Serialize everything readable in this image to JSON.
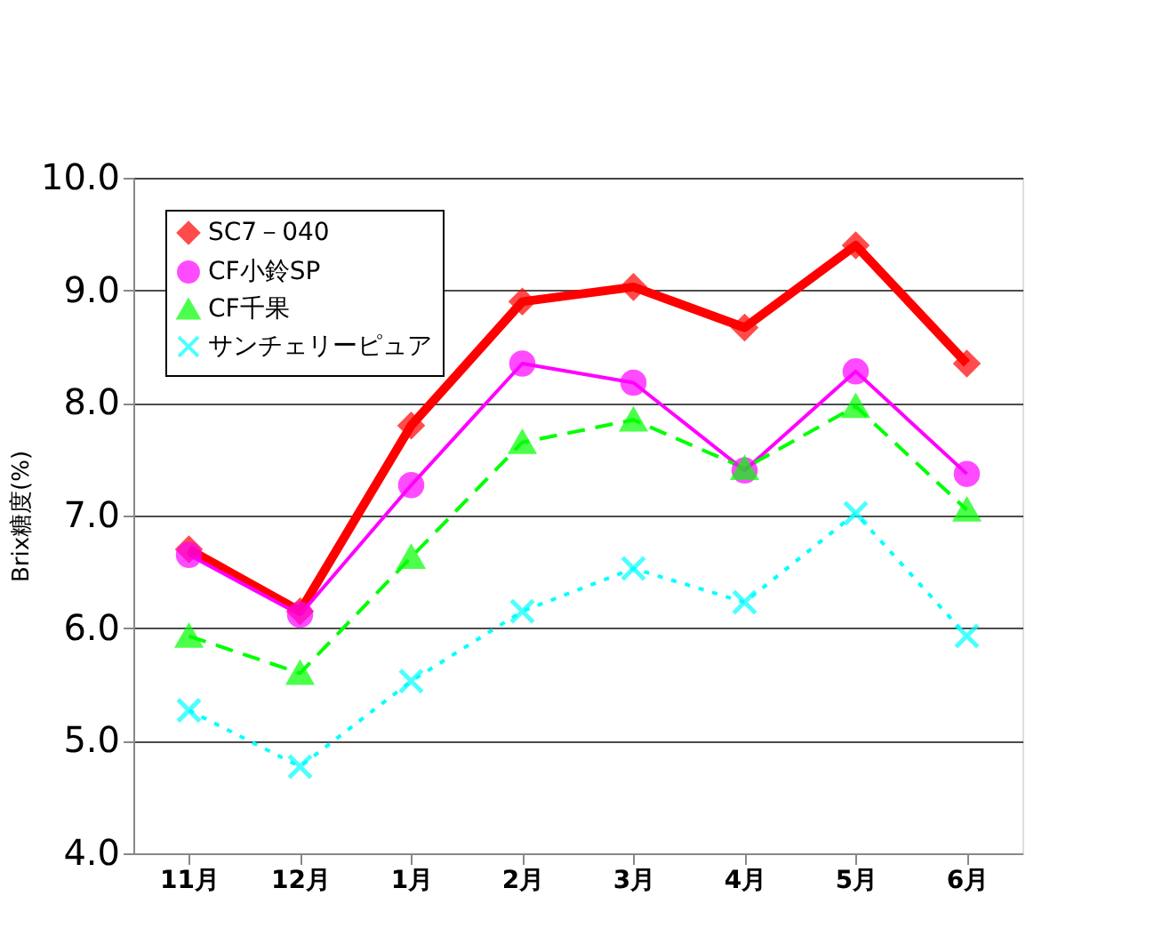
{
  "chart_data": {
    "type": "line",
    "ylabel": "Brix糖度(%)",
    "categories": [
      "11月",
      "12月",
      "1月",
      "2月",
      "3月",
      "4月",
      "5月",
      "6月"
    ],
    "ylim": [
      4.0,
      10.0
    ],
    "yticks": [
      {
        "value": 4,
        "label": "4.0"
      },
      {
        "value": 5,
        "label": "5.0"
      },
      {
        "value": 6,
        "label": "6.0"
      },
      {
        "value": 7,
        "label": "7.0"
      },
      {
        "value": 8,
        "label": "8.0"
      },
      {
        "value": 9,
        "label": "9.0"
      },
      {
        "value": 10,
        "label": "10.0"
      }
    ],
    "grid": "y",
    "legend": "top left",
    "series": [
      {
        "name": "SC7－040",
        "color": "#ff0000",
        "marker": "diamond",
        "line_style": "solid",
        "values": [
          6.7,
          6.15,
          7.8,
          8.9,
          9.03,
          8.67,
          9.4,
          8.35
        ]
      },
      {
        "name": "CF小鈴SP",
        "color": "#ff00ff",
        "marker": "circle",
        "line_style": "solid",
        "values": [
          6.65,
          6.12,
          7.27,
          8.35,
          8.18,
          7.4,
          8.28,
          7.37
        ]
      },
      {
        "name": "CF千果",
        "color": "#00ff00",
        "marker": "triangle",
        "line_style": "dashed",
        "values": [
          5.93,
          5.6,
          6.63,
          7.65,
          7.85,
          7.42,
          7.97,
          7.05
        ]
      },
      {
        "name": "サンチェリーピュア",
        "color": "#00ffff",
        "marker": "cross",
        "line_style": "dotted",
        "values": [
          5.27,
          4.77,
          5.53,
          6.15,
          6.53,
          6.23,
          7.02,
          5.93
        ]
      }
    ]
  }
}
